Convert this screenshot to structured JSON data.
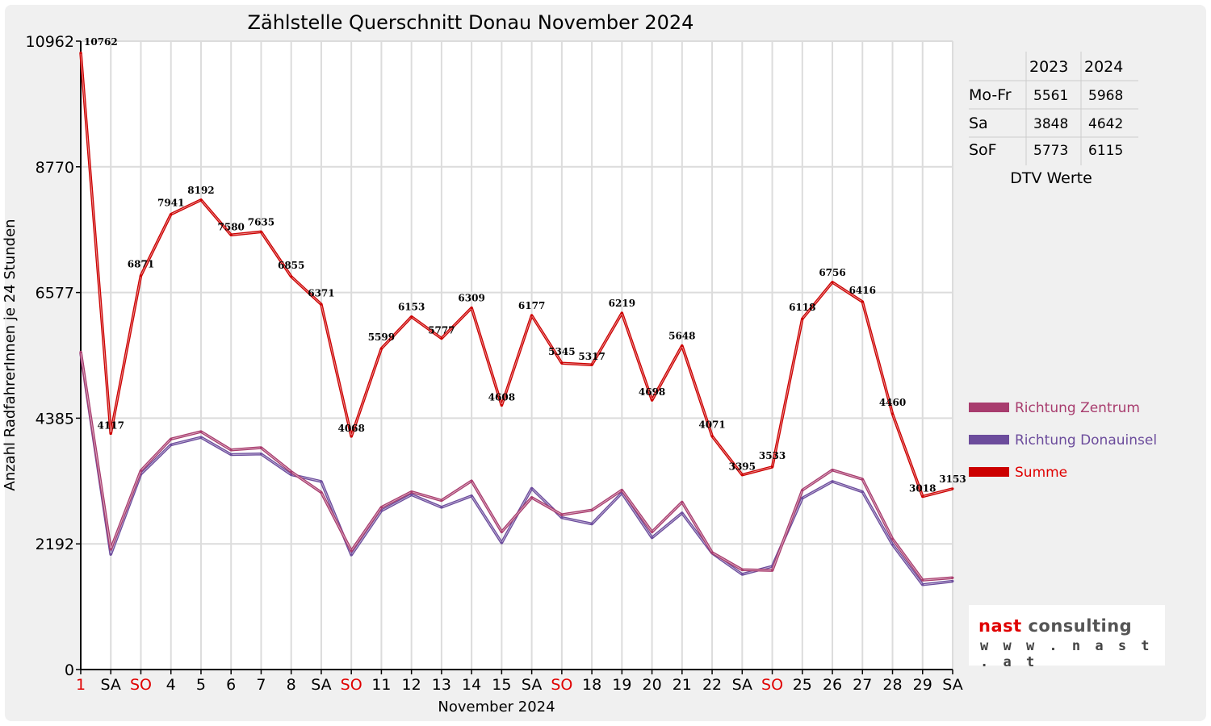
{
  "chart_data": {
    "type": "line",
    "title": "Zählstelle Querschnitt Donau November 2024",
    "xlabel": "November 2024",
    "ylabel": "Anzahl RadfahrerInnen je 24 Stunden",
    "ylim": [
      0,
      10962
    ],
    "yticks": [
      0,
      2192,
      4385,
      6577,
      8770,
      10962
    ],
    "categories": [
      "1",
      "SA",
      "SO",
      "4",
      "5",
      "6",
      "7",
      "8",
      "SA",
      "SO",
      "11",
      "12",
      "13",
      "14",
      "15",
      "SA",
      "SO",
      "18",
      "19",
      "20",
      "21",
      "22",
      "SA",
      "SO",
      "25",
      "26",
      "27",
      "28",
      "29",
      "SA"
    ],
    "red_categories": [
      0,
      2,
      9,
      16,
      23
    ],
    "series": [
      {
        "name": "Summe",
        "color": "#cc0000",
        "values": [
          10762,
          4117,
          6871,
          7941,
          8192,
          7580,
          7635,
          6855,
          6371,
          4068,
          5599,
          6153,
          5777,
          6309,
          4608,
          6177,
          5345,
          5317,
          6219,
          4698,
          5648,
          4071,
          3395,
          3533,
          6118,
          6756,
          6416,
          4460,
          3018,
          3153
        ]
      },
      {
        "name": "Richtung Zentrum",
        "color": "#a83c6e",
        "values": [
          5540,
          2100,
          3470,
          4020,
          4150,
          3830,
          3870,
          3450,
          3090,
          2070,
          2830,
          3100,
          2950,
          3290,
          2400,
          3000,
          2700,
          2780,
          3130,
          2400,
          2920,
          2040,
          1740,
          1730,
          3130,
          3480,
          3320,
          2280,
          1560,
          1600
        ]
      },
      {
        "name": "Richtung Donauinsel",
        "color": "#6c4c9c",
        "values": [
          5520,
          2010,
          3410,
          3920,
          4050,
          3750,
          3760,
          3400,
          3280,
          2000,
          2770,
          3050,
          2830,
          3030,
          2210,
          3160,
          2650,
          2540,
          3080,
          2300,
          2730,
          2030,
          1660,
          1800,
          2990,
          3280,
          3100,
          2180,
          1480,
          1540
        ]
      }
    ],
    "legend": [
      "Richtung Zentrum",
      "Richtung Donauinsel",
      "Summe"
    ],
    "legend_position": "right"
  },
  "dtv_table": {
    "caption": "DTV Werte",
    "header": [
      "",
      "2023",
      "2024"
    ],
    "rows": [
      [
        "Mo-Fr",
        "5561",
        "5968"
      ],
      [
        "Sa",
        "3848",
        "4642"
      ],
      [
        "SoF",
        "5773",
        "6115"
      ]
    ]
  },
  "logo": {
    "name_accent": "nast",
    "name_rest": " consulting",
    "url": "w w w . n a s t . a t"
  },
  "colors": {
    "background": "#f0f0f0",
    "grid": "#dcdcdc",
    "red": "#e00000"
  }
}
